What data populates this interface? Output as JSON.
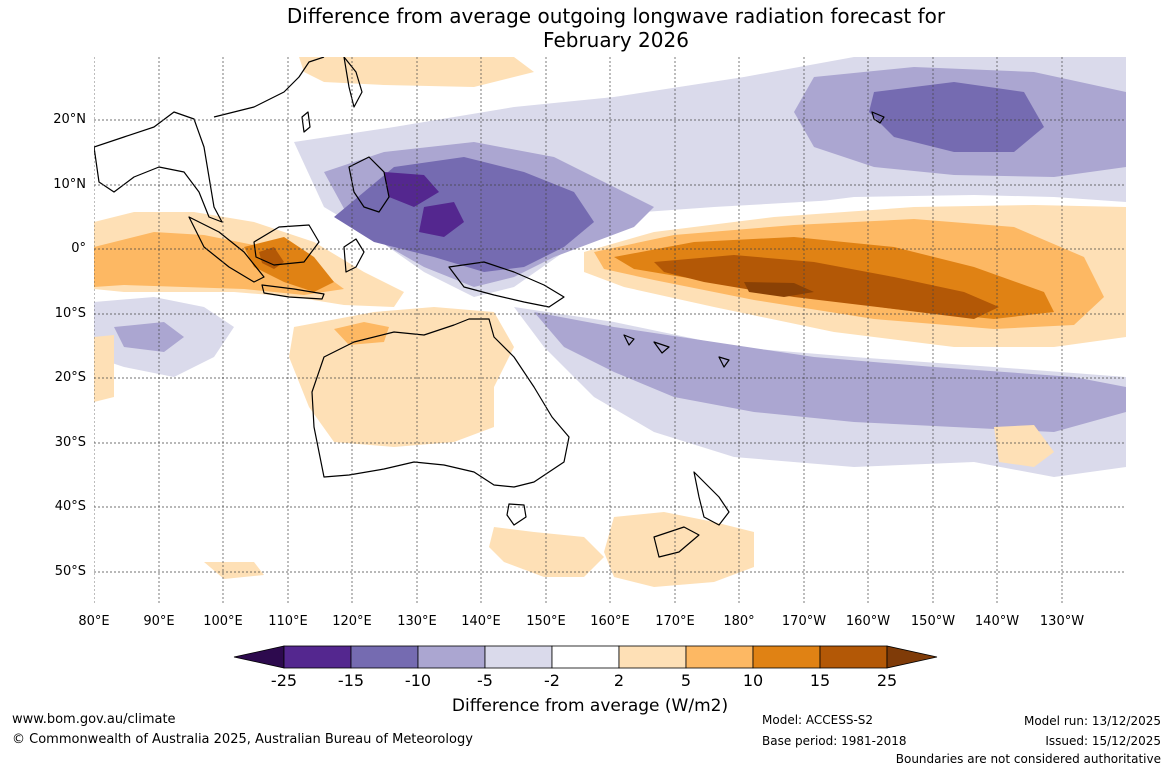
{
  "title_line1": "Difference from average outgoing longwave radiation forecast for",
  "title_line2": "February 2026",
  "map": {
    "lat_labels": [
      "20°N",
      "10°N",
      "0°",
      "10°S",
      "20°S",
      "30°S",
      "40°S",
      "50°S"
    ],
    "lon_labels": [
      "80°E",
      "90°E",
      "100°E",
      "110°E",
      "120°E",
      "130°E",
      "140°E",
      "150°E",
      "160°E",
      "170°E",
      "180°",
      "170°W",
      "160°W",
      "150°W",
      "140°W",
      "130°W"
    ]
  },
  "legend": {
    "ticks": [
      "-25",
      "-15",
      "-10",
      "-5",
      "-2",
      "2",
      "5",
      "10",
      "15",
      "25"
    ],
    "colors": [
      "#2d0a4e",
      "#54278f",
      "#756bb1",
      "#aba6d1",
      "#dadaeb",
      "#ffffff",
      "#fee0b6",
      "#fdb863",
      "#e08214",
      "#b35806",
      "#7f3b08"
    ],
    "title": "Difference from average (W/m2)"
  },
  "footer": {
    "website": "www.bom.gov.au/climate",
    "copyright": "© Commonwealth of Australia 2025, Australian Bureau of Meteorology",
    "model": "Model: ACCESS-S2",
    "base_period": "Base period: 1981-2018",
    "model_run": "Model run: 13/12/2025",
    "issued": "Issued: 15/12/2025",
    "disclaimer": "Boundaries are not considered authoritative"
  }
}
